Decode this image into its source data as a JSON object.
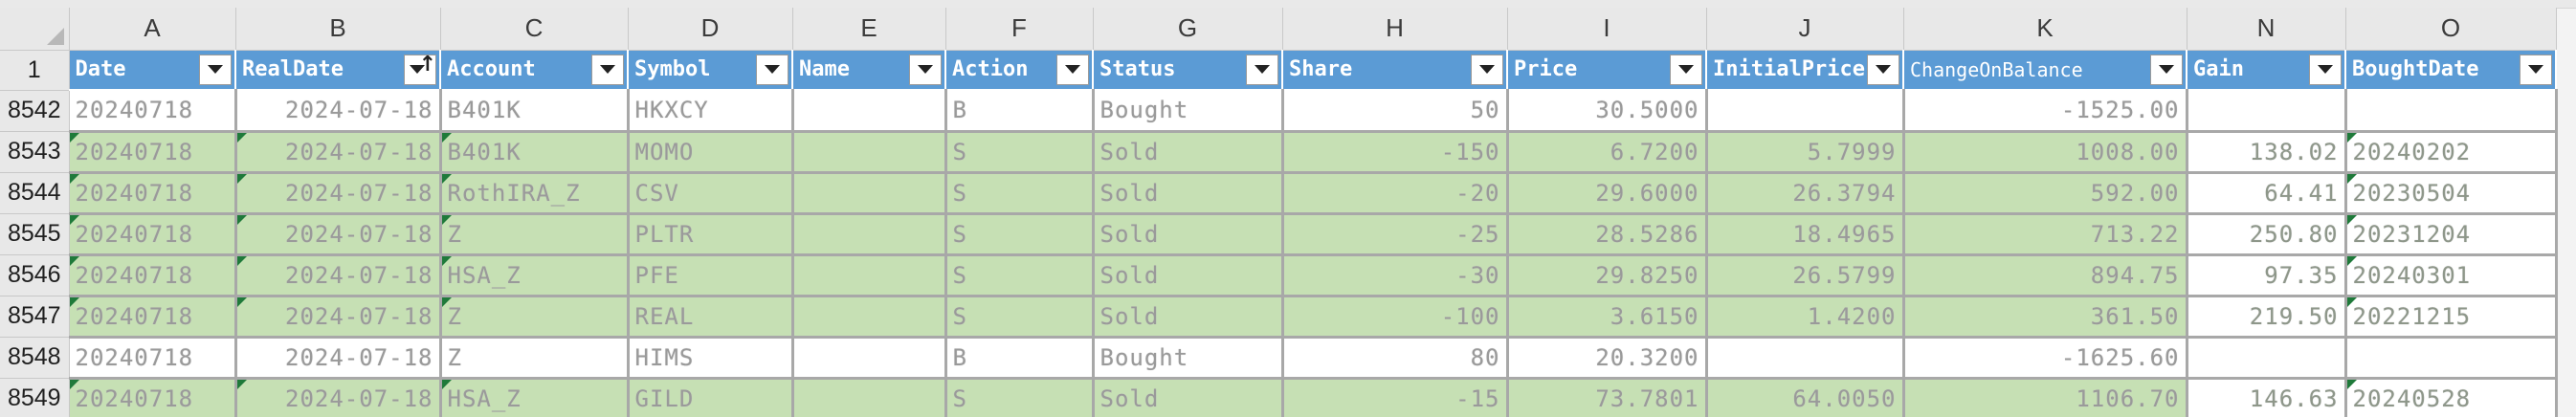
{
  "columns": [
    {
      "letter": "A",
      "header": "Date",
      "sorted": false
    },
    {
      "letter": "B",
      "header": "RealDate",
      "sorted": true
    },
    {
      "letter": "C",
      "header": "Account",
      "sorted": false
    },
    {
      "letter": "D",
      "header": "Symbol",
      "sorted": false
    },
    {
      "letter": "E",
      "header": "Name",
      "sorted": false
    },
    {
      "letter": "F",
      "header": "Action",
      "sorted": false
    },
    {
      "letter": "G",
      "header": "Status",
      "sorted": false
    },
    {
      "letter": "H",
      "header": "Share",
      "sorted": false
    },
    {
      "letter": "I",
      "header": "Price",
      "sorted": false
    },
    {
      "letter": "J",
      "header": "InitialPrice",
      "sorted": false
    },
    {
      "letter": "K",
      "header": "ChangeOnBalance",
      "sorted": false
    },
    {
      "letter": "N",
      "header": "Gain",
      "sorted": false
    },
    {
      "letter": "O",
      "header": "BoughtDate",
      "sorted": false
    }
  ],
  "header_row_number": "1",
  "sort_indicator": "↑",
  "rows": [
    {
      "num": "8542",
      "style": "white",
      "cells": [
        "20240718",
        "2024-07-18",
        "B401K",
        "HKXCY",
        "",
        "B",
        "Bought",
        "50",
        "30.5000",
        "",
        "-1525.00",
        "",
        ""
      ]
    },
    {
      "num": "8543",
      "style": "green",
      "cells": [
        "20240718",
        "2024-07-18",
        "B401K",
        "MOMO",
        "",
        "S",
        "Sold",
        "-150",
        "6.7200",
        "5.7999",
        "1008.00",
        "138.02",
        "20240202"
      ]
    },
    {
      "num": "8544",
      "style": "green",
      "cells": [
        "20240718",
        "2024-07-18",
        "RothIRA_Z",
        "CSV",
        "",
        "S",
        "Sold",
        "-20",
        "29.6000",
        "26.3794",
        "592.00",
        "64.41",
        "20230504"
      ]
    },
    {
      "num": "8545",
      "style": "green",
      "cells": [
        "20240718",
        "2024-07-18",
        "Z",
        "PLTR",
        "",
        "S",
        "Sold",
        "-25",
        "28.5286",
        "18.4965",
        "713.22",
        "250.80",
        "20231204"
      ]
    },
    {
      "num": "8546",
      "style": "green",
      "cells": [
        "20240718",
        "2024-07-18",
        "HSA_Z",
        "PFE",
        "",
        "S",
        "Sold",
        "-30",
        "29.8250",
        "26.5799",
        "894.75",
        "97.35",
        "20240301"
      ]
    },
    {
      "num": "8547",
      "style": "green",
      "cells": [
        "20240718",
        "2024-07-18",
        "Z",
        "REAL",
        "",
        "S",
        "Sold",
        "-100",
        "3.6150",
        "1.4200",
        "361.50",
        "219.50",
        "20221215"
      ]
    },
    {
      "num": "8548",
      "style": "white",
      "cells": [
        "20240718",
        "2024-07-18",
        "Z",
        "HIMS",
        "",
        "B",
        "Bought",
        "80",
        "20.3200",
        "",
        "-1625.60",
        "",
        ""
      ]
    },
    {
      "num": "8549",
      "style": "green",
      "cells": [
        "20240718",
        "2024-07-18",
        "HSA_Z",
        "GILD",
        "",
        "S",
        "Sold",
        "-15",
        "73.7801",
        "64.0050",
        "1106.70",
        "146.63",
        "20240528"
      ]
    }
  ],
  "colors": {
    "header_fill": "#5b9bd5",
    "sold_row_fill": "#c6e0b4",
    "bought_row_fill": "#ffffff",
    "cell_text": "#9a9a9a",
    "grid_border": "#a8a8a8",
    "error_indicator": "#1f7a3a"
  }
}
